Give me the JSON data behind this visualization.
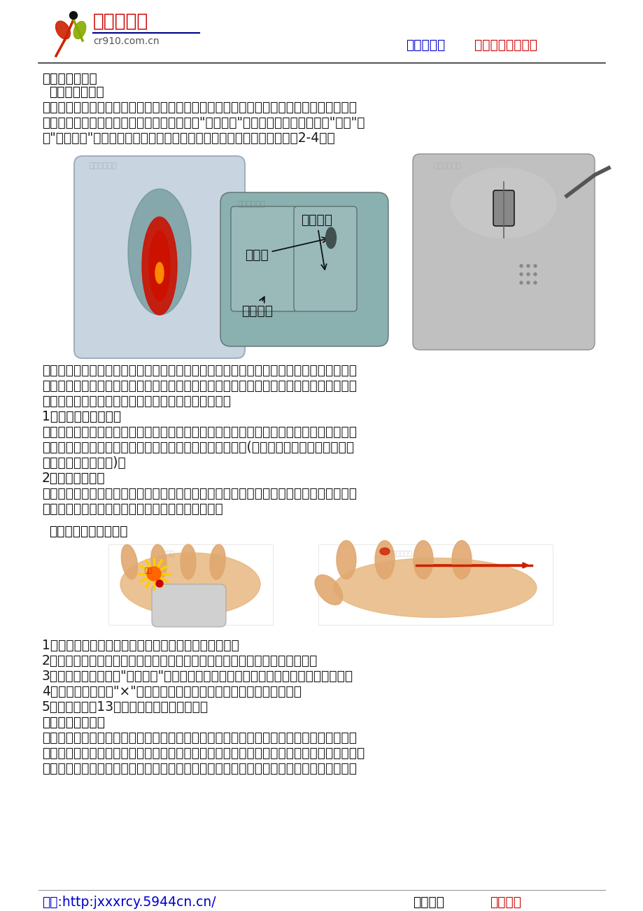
{
  "bg_color": "#ffffff",
  "header": {
    "logo_text": "丛蓉教辅园",
    "logo_subtext": "cr910.com.cn",
    "header_right1": "丛蓉教辅园",
    "header_right2": "  教辅资源免费下载",
    "header_right_color1": "#cc0000",
    "header_right_color2": "#cc0000"
  },
  "section_title": "三、与鼠标交友",
  "subsection1": "（一）教师讲解",
  "para1_lines": [
    "同学们第一次与计算机玩，就要学习与鼠标交朋友，因为计算机最听鼠标的话。鼠标的品种",
    "和形状非常多。有的鼠标下面有一个小球，叫\"机械鼠标\"；有的下面有一个发光的\"小灯\"，",
    "叫\"光电鼠标\"。鼠标上面有左右两个按钮，有的中间还有一个小滚轮（图2-4）。"
  ],
  "mouse_label1": "小滚轮",
  "mouse_label2": "鼠标右键",
  "mouse_label3": "鼠标左键",
  "para2_lines": [
    "光电鼠标现在请同学们看看你的鼠标是什么样子，再摸一摸，感觉一下你手里的鼠标。大家",
    "看看，鼠标上有两个长得有点像小老鼠耳朵的两个键：左边的一个我们把它叫做鼠标左键；",
    "那么右边的一个我们把它叫做鼠标的右键。能记住吗？"
  ],
  "label1_title": "1、握鼠标的基本姿势",
  "para3_lines": [
    "手握鼠标，不要太紧，就像把手放在自己的膝盖上一样，使鼠标的后半部分恰好在掌下，食",
    "指和中指分别轻放在左右按键上，拇指和无名指轻夹两侧。(先请一个同学试一下。再请另",
    "外一个同学也试一下)。"
  ],
  "label2_title": "2、鼠标拖动动作",
  "para4_lines": [
    "先移动光标到对准对象，按下左键不要松开，通过移动鼠标将对象移到预定位置，然后松开",
    "左键，这样您可以将一个对象由一处移动到另一处。"
  ],
  "subsection2": "（二）试一试，想一想",
  "numbered_items": [
    "1．上、下、左、右移动鼠标，看看鼠标指针怎么移动。",
    "2．将鼠标移动到桌面一个图标上，点一下鼠标左键，你看到图标有什么变化？",
    "3．将鼠标移动到图标\"我的电脑\"上，快速点两下鼠标左键，看一看，发生了什么现象。",
    "4．再把鼠标移动到\"×\"按钮上，单击鼠标左键，你又看到了什么现象？",
    "5．你能照书上13页的样子摆图吗？试试吧。"
  ],
  "section4_title": "四、跟我学关机。",
  "para5_lines": [
    "小朋友早上起来的第一件事是睁开眼晴，那上床后我们会把眼晴闭上。然后开始休息。电脑",
    "同样如此。我们最后也要让电脑把眼晴闭上，要不然电脑就休息不好，他会生气的。同学们，",
    "快下课了，我们该与计算机说再见了，看老师操作，欢迎下次再来，希望你能成为计算机的"
  ],
  "footer_left": "网址:http:jxxxrcy.5944cn.cn/",
  "footer_right_black": "欢迎您来",
  "footer_right_red": "免费下载"
}
